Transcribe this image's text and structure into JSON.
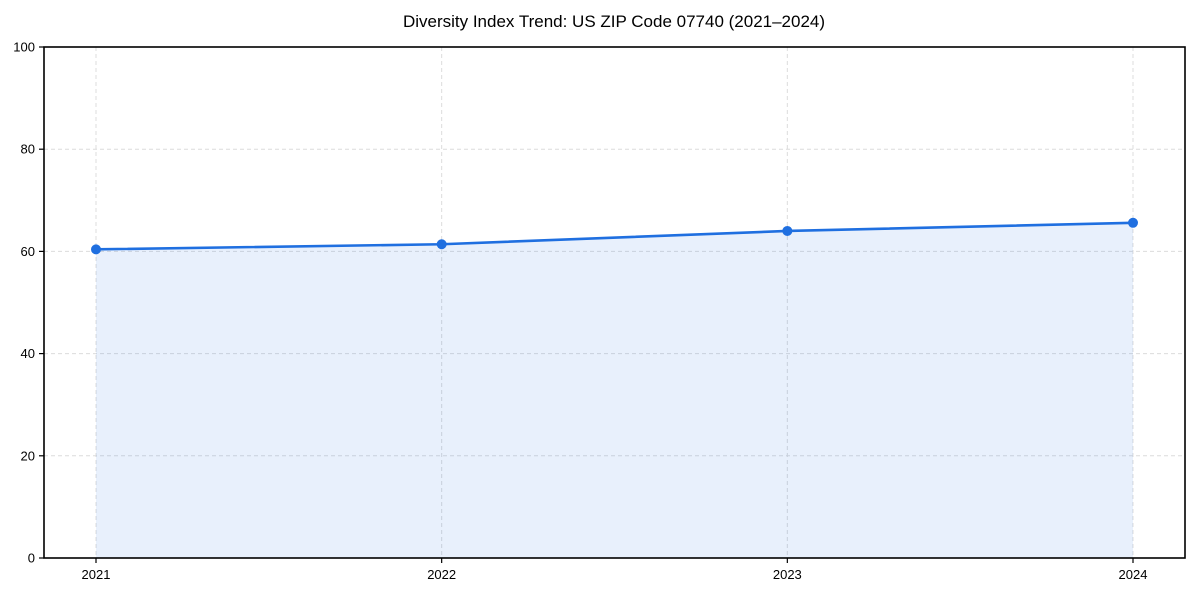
{
  "page": {
    "background_color": "#ffffff"
  },
  "chart_data": {
    "type": "area",
    "title": "Diversity Index Trend: US ZIP Code 07740 (2021–2024)",
    "x": [
      2021,
      2022,
      2023,
      2024
    ],
    "xticks": [
      "2021",
      "2022",
      "2023",
      "2024"
    ],
    "series": [
      {
        "name": "Diversity Index",
        "values": [
          60.4,
          61.4,
          64.0,
          65.6
        ]
      }
    ],
    "xlabel": "",
    "ylabel": "",
    "ylim": [
      0,
      100
    ],
    "yticks": [
      0,
      20,
      40,
      60,
      80,
      100
    ],
    "grid": true,
    "grid_style": "dashed",
    "legend_position": "none",
    "line_color": "#1f6fe0",
    "marker_color": "#1f6fe0",
    "fill_color": "rgba(31,111,224,0.10)",
    "grid_color": "#dcdcdc",
    "axis_color": "#000000",
    "marker_shape": "circle"
  }
}
